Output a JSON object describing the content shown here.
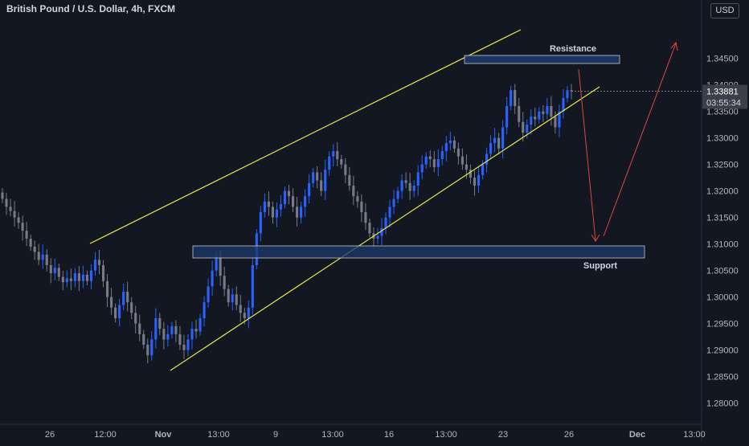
{
  "header": {
    "title": "British Pound / U.S. Dollar, 4h, FXCM",
    "currency_button": "USD"
  },
  "colors": {
    "background": "#131722",
    "bull": "#2962ff",
    "bear": "#787b86",
    "trendline": "#e8e84a",
    "arrow": "#e0473c",
    "zone_fill": "#1e3a6b",
    "zone_border": "#c8c8c8",
    "axis_text": "#b2b5be"
  },
  "annotations": {
    "resistance_label": "Resistance",
    "support_label": "Support"
  },
  "price_label": {
    "price": "1.33881",
    "countdown": "03:55:34"
  },
  "chart_data": {
    "type": "candlestick",
    "symbol": "GBPUSD",
    "timeframe": "4h",
    "ylim": [
      1.276,
      1.356
    ],
    "y_ticks": [
      "1.34500",
      "1.34000",
      "1.33500",
      "1.33000",
      "1.32500",
      "1.32000",
      "1.31500",
      "1.31000",
      "1.30500",
      "1.30000",
      "1.29500",
      "1.29000",
      "1.28500",
      "1.28000"
    ],
    "x_ticks": [
      "26",
      "12:00",
      "Nov",
      "13:00",
      "9",
      "13:00",
      "16",
      "13:00",
      "23",
      "26",
      "Dec",
      "13:00"
    ],
    "candles_close": [
      1.3185,
      1.317,
      1.3162,
      1.315,
      1.314,
      1.3125,
      1.311,
      1.3095,
      1.3085,
      1.307,
      1.308,
      1.306,
      1.3045,
      1.3055,
      1.3038,
      1.3028,
      1.3035,
      1.303,
      1.3045,
      1.303,
      1.3042,
      1.303,
      1.305,
      1.307,
      1.306,
      1.303,
      1.3,
      1.298,
      1.296,
      1.2985,
      1.301,
      1.299,
      1.297,
      1.295,
      1.293,
      1.291,
      1.289,
      1.292,
      1.296,
      1.294,
      1.292,
      1.293,
      1.2945,
      1.293,
      1.291,
      1.29,
      1.292,
      1.294,
      1.2935,
      1.296,
      1.299,
      1.302,
      1.305,
      1.3075,
      1.304,
      1.3015,
      1.299,
      1.3005,
      1.2985,
      1.297,
      1.296,
      1.298,
      1.306,
      1.312,
      1.316,
      1.318,
      1.317,
      1.315,
      1.3165,
      1.3175,
      1.32,
      1.319,
      1.317,
      1.315,
      1.317,
      1.319,
      1.3215,
      1.3235,
      1.322,
      1.32,
      1.324,
      1.3265,
      1.3275,
      1.326,
      1.325,
      1.323,
      1.321,
      1.319,
      1.318,
      1.316,
      1.314,
      1.312,
      1.311,
      1.3115,
      1.313,
      1.315,
      1.317,
      1.3185,
      1.32,
      1.322,
      1.3215,
      1.32,
      1.321,
      1.3235,
      1.325,
      1.3265,
      1.326,
      1.3245,
      1.326,
      1.3275,
      1.329,
      1.3295,
      1.328,
      1.3265,
      1.325,
      1.324,
      1.3225,
      1.321,
      1.323,
      1.325,
      1.327,
      1.329,
      1.33,
      1.328,
      1.332,
      1.336,
      1.339,
      1.336,
      1.333,
      1.331,
      1.3325,
      1.334,
      1.3335,
      1.335,
      1.3345,
      1.336,
      1.334,
      1.332,
      1.335,
      1.3375,
      1.339,
      1.3388
    ]
  }
}
